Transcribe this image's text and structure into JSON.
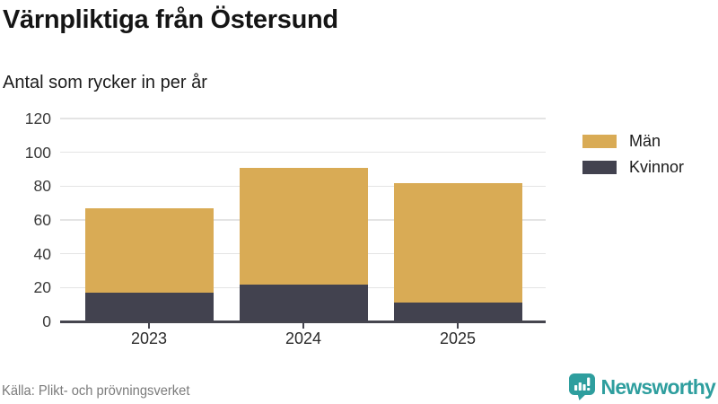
{
  "header": {
    "title": "Värnpliktiga från Östersund",
    "subtitle": "Antal som rycker in per år"
  },
  "chart_data": {
    "type": "bar",
    "stacked": true,
    "title": "Värnpliktiga från Östersund",
    "subtitle": "Antal som rycker in per år",
    "categories": [
      "2023",
      "2024",
      "2025"
    ],
    "series": [
      {
        "name": "Män",
        "color": "#D9AB55",
        "values": [
          50,
          69,
          71
        ]
      },
      {
        "name": "Kvinnor",
        "color": "#42424F",
        "values": [
          17,
          22,
          11
        ]
      }
    ],
    "totals": [
      67,
      91,
      82
    ],
    "xlabel": "",
    "ylabel": "",
    "ylim": [
      0,
      120
    ],
    "yticks": [
      0,
      20,
      40,
      60,
      80,
      100,
      120
    ],
    "grid": "horizontal",
    "legend_position": "right-top"
  },
  "footer": {
    "source": "Källa: Plikt- och prövningsverket",
    "brand": "Newsworthy"
  },
  "colors": {
    "men": "#D9AB55",
    "women": "#42424F",
    "brand_teal": "#2E9E9E",
    "grid": "#E4E4E4",
    "axis": "#45454E",
    "text": "#151515",
    "muted": "#7B7B7B"
  }
}
